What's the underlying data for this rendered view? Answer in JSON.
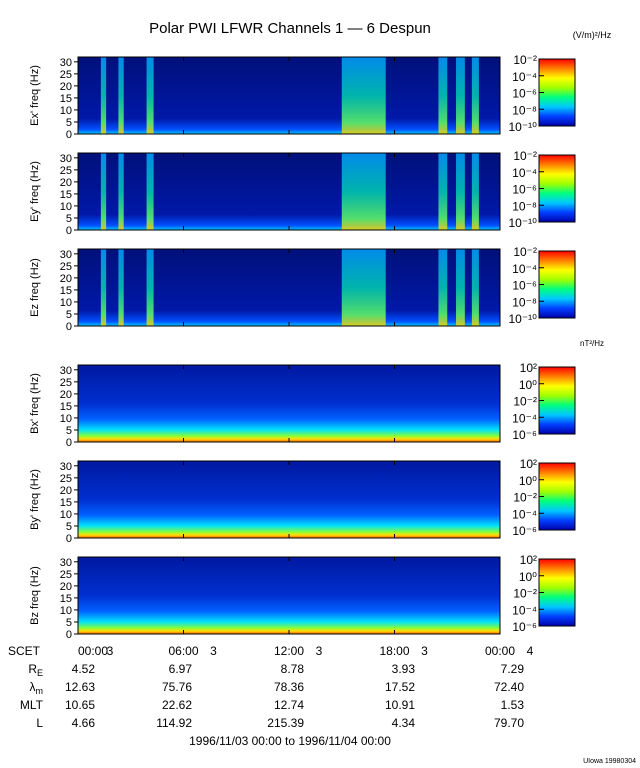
{
  "title": "Polar PWI LFWR Channels 1 — 6 Despun",
  "electric_unit_html": "(V/m)²/Hz",
  "magnetic_unit": "nT²/Hz",
  "credit": "UIowa 19980304",
  "date_range": "1996/11/03 00:00 to 1996/11/04 00:00",
  "colormap": [
    "#0000aa",
    "#0040ff",
    "#00c8ff",
    "#00ff80",
    "#a0ff00",
    "#ffff00",
    "#ff8000",
    "#ff0000"
  ],
  "chart_data": [
    {
      "type": "heatmap",
      "ylabel": "Ex' freq (Hz)",
      "yticks": [
        0,
        5,
        10,
        15,
        20,
        25,
        30
      ],
      "ylim": [
        0,
        32
      ],
      "xlim": [
        0,
        24
      ],
      "colorbar": {
        "labels": [
          "10⁻²",
          "10⁻⁴",
          "10⁻⁶",
          "10⁻⁸",
          "10⁻¹⁰"
        ],
        "values": [
          -2,
          -4,
          -6,
          -8,
          -10
        ]
      },
      "bursts": [
        [
          1.3,
          1.6
        ],
        [
          2.3,
          2.6
        ],
        [
          3.9,
          4.3
        ],
        [
          15.0,
          17.5
        ],
        [
          20.5,
          21.0
        ],
        [
          21.5,
          22.0
        ],
        [
          22.4,
          22.8
        ]
      ]
    },
    {
      "type": "heatmap",
      "ylabel": "Ey' freq (Hz)",
      "yticks": [
        0,
        5,
        10,
        15,
        20,
        25,
        30
      ],
      "ylim": [
        0,
        32
      ],
      "xlim": [
        0,
        24
      ],
      "colorbar": {
        "labels": [
          "10⁻²",
          "10⁻⁴",
          "10⁻⁶",
          "10⁻⁸",
          "10⁻¹⁰"
        ],
        "values": [
          -2,
          -4,
          -6,
          -8,
          -10
        ]
      },
      "bursts": [
        [
          1.3,
          1.6
        ],
        [
          2.3,
          2.6
        ],
        [
          3.9,
          4.3
        ],
        [
          15.0,
          17.5
        ],
        [
          20.5,
          21.0
        ],
        [
          21.5,
          22.0
        ],
        [
          22.4,
          22.8
        ]
      ]
    },
    {
      "type": "heatmap",
      "ylabel": "Ez freq (Hz)",
      "yticks": [
        0,
        5,
        10,
        15,
        20,
        25,
        30
      ],
      "ylim": [
        0,
        32
      ],
      "xlim": [
        0,
        24
      ],
      "colorbar": {
        "labels": [
          "10⁻²",
          "10⁻⁴",
          "10⁻⁶",
          "10⁻⁸",
          "10⁻¹⁰"
        ],
        "values": [
          -2,
          -4,
          -6,
          -8,
          -10
        ]
      },
      "bursts": [
        [
          1.3,
          1.6
        ],
        [
          2.3,
          2.6
        ],
        [
          3.9,
          4.3
        ],
        [
          15.0,
          17.5
        ],
        [
          20.5,
          21.0
        ],
        [
          21.5,
          22.0
        ],
        [
          22.4,
          22.8
        ]
      ]
    },
    {
      "type": "heatmap",
      "ylabel": "Bx' freq (Hz)",
      "yticks": [
        0,
        5,
        10,
        15,
        20,
        25,
        30
      ],
      "ylim": [
        0,
        32
      ],
      "xlim": [
        0,
        24
      ],
      "colorbar": {
        "labels": [
          "10²",
          "10⁰",
          "10⁻²",
          "10⁻⁴",
          "10⁻⁶"
        ],
        "values": [
          2,
          0,
          -2,
          -4,
          -6
        ]
      },
      "bursts": []
    },
    {
      "type": "heatmap",
      "ylabel": "By' freq (Hz)",
      "yticks": [
        0,
        5,
        10,
        15,
        20,
        25,
        30
      ],
      "ylim": [
        0,
        32
      ],
      "xlim": [
        0,
        24
      ],
      "colorbar": {
        "labels": [
          "10²",
          "10⁰",
          "10⁻²",
          "10⁻⁴",
          "10⁻⁶"
        ],
        "values": [
          2,
          0,
          -2,
          -4,
          -6
        ]
      },
      "bursts": []
    },
    {
      "type": "heatmap",
      "ylabel": "Bz freq (Hz)",
      "yticks": [
        0,
        5,
        10,
        15,
        20,
        25,
        30
      ],
      "ylim": [
        0,
        32
      ],
      "xlim": [
        0,
        24
      ],
      "colorbar": {
        "labels": [
          "10²",
          "10⁰",
          "10⁻²",
          "10⁻⁴",
          "10⁻⁶"
        ],
        "values": [
          2,
          0,
          -2,
          -4,
          -6
        ]
      },
      "bursts": []
    }
  ],
  "time_axis": {
    "first_label": "SCET",
    "ticks": [
      {
        "hour": 0,
        "label": "00:00",
        "sub": "3"
      },
      {
        "hour": 6,
        "label": "06:00",
        "sub": "3"
      },
      {
        "hour": 12,
        "label": "12:00",
        "sub": "3"
      },
      {
        "hour": 18,
        "label": "18:00",
        "sub": "3"
      },
      {
        "hour": 24,
        "label": "00:00",
        "sub": "4"
      }
    ]
  },
  "ephemeris": [
    {
      "label": "R_E",
      "values": [
        "4.52",
        "6.97",
        "8.78",
        "3.93",
        "7.29"
      ]
    },
    {
      "label": "λ_m",
      "values": [
        "12.63",
        "75.76",
        "78.36",
        "17.52",
        "72.40"
      ]
    },
    {
      "label": "MLT",
      "values": [
        "10.65",
        "22.62",
        "12.74",
        "10.91",
        "1.53"
      ]
    },
    {
      "label": "L",
      "values": [
        "4.66",
        "114.92",
        "215.39",
        "4.34",
        "79.70"
      ]
    }
  ]
}
